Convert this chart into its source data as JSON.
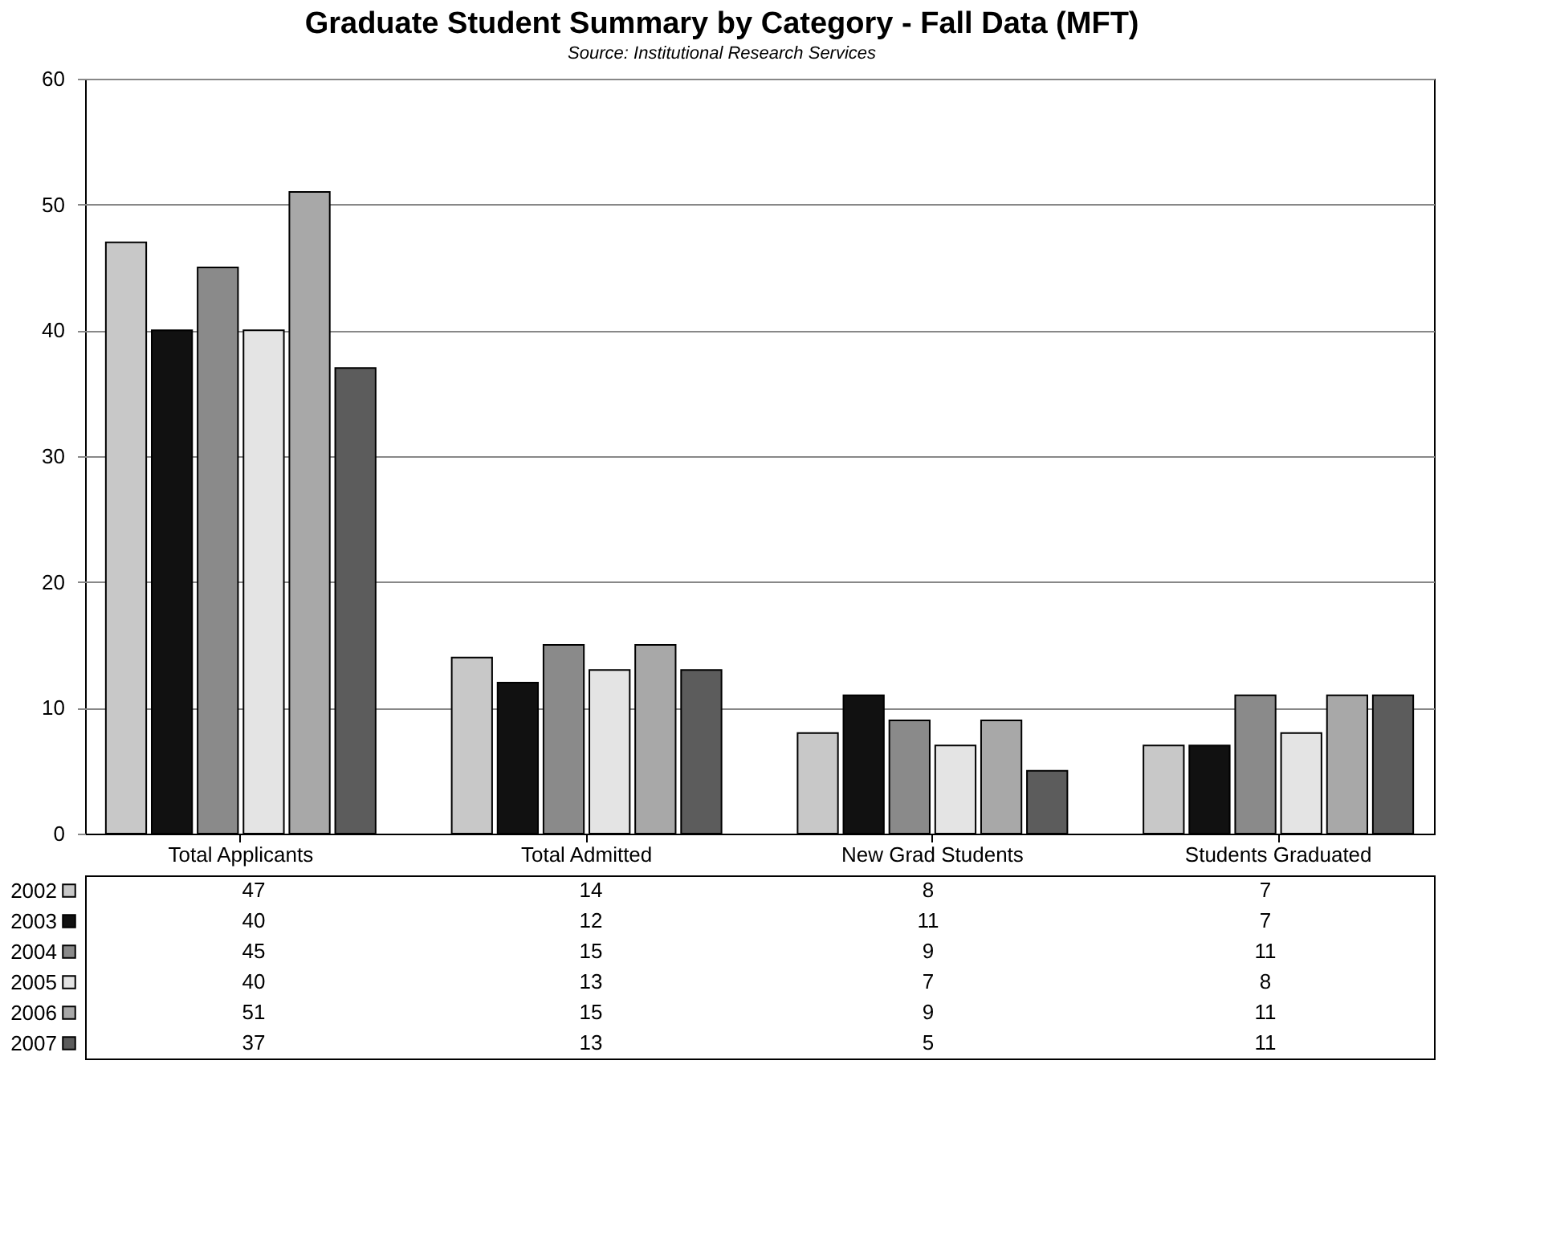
{
  "chart_data": {
    "type": "bar",
    "title": "Graduate Student Summary by Category - Fall Data (MFT)",
    "subtitle": "Source: Institutional Research Services",
    "categories": [
      "Total Applicants",
      "Total Admitted",
      "New Grad Students",
      "Students Graduated"
    ],
    "series": [
      {
        "name": "2002",
        "color": "#c8c8c8",
        "values": [
          47,
          14,
          8,
          7
        ]
      },
      {
        "name": "2003",
        "color": "#111111",
        "values": [
          40,
          12,
          11,
          7
        ]
      },
      {
        "name": "2004",
        "color": "#8a8a8a",
        "values": [
          45,
          15,
          9,
          11
        ]
      },
      {
        "name": "2005",
        "color": "#e4e4e4",
        "values": [
          40,
          13,
          7,
          8
        ]
      },
      {
        "name": "2006",
        "color": "#a8a8a8",
        "values": [
          51,
          15,
          9,
          11
        ]
      },
      {
        "name": "2007",
        "color": "#5c5c5c",
        "values": [
          37,
          13,
          5,
          11
        ]
      }
    ],
    "ylim": [
      0,
      60
    ],
    "yticks": [
      0,
      10,
      20,
      30,
      40,
      50,
      60
    ],
    "grid": "y",
    "legend": "bottom",
    "data_labels": true
  }
}
